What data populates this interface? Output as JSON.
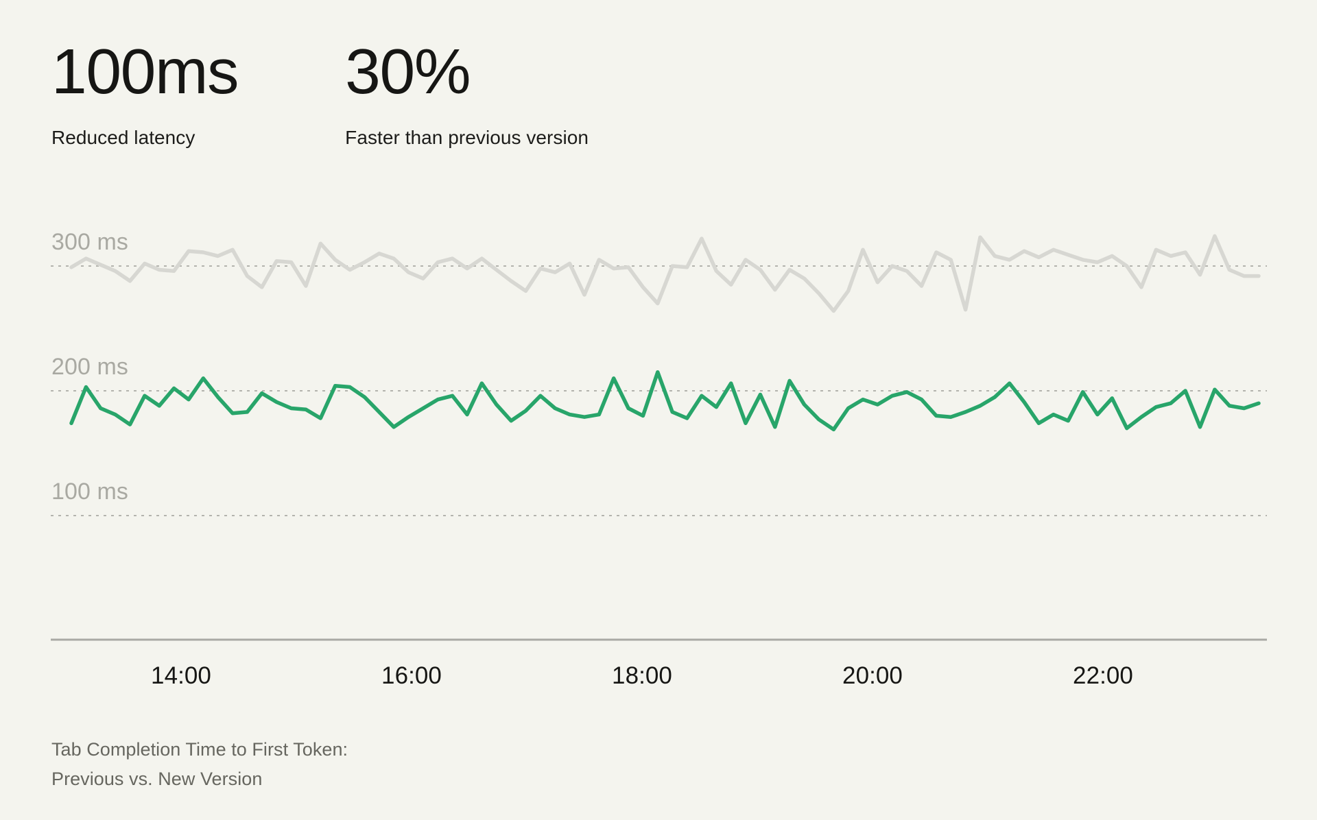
{
  "page": {
    "background_color": "#f4f4ee"
  },
  "stats": [
    {
      "value": "100ms",
      "label": "Reduced latency"
    },
    {
      "value": "30%",
      "label": "Faster than previous version"
    }
  ],
  "caption": {
    "line1": "Tab Completion Time to First Token:",
    "line2": "Previous vs. New Version"
  },
  "chart_data": {
    "type": "line",
    "title": "Tab Completion Time to First Token: Previous vs. New Version",
    "unit": "ms",
    "grid": "dotted-horizontal",
    "legend_position": "none",
    "x_range_hours": [
      13.05,
      23.35
    ],
    "x_ticks": [
      {
        "label": "14:00",
        "hour": 14
      },
      {
        "label": "16:00",
        "hour": 16
      },
      {
        "label": "18:00",
        "hour": 18
      },
      {
        "label": "20:00",
        "hour": 20
      },
      {
        "label": "22:00",
        "hour": 22
      }
    ],
    "y_ticks": [
      {
        "label": "300 ms",
        "value": 300
      },
      {
        "label": "200 ms",
        "value": 200
      },
      {
        "label": "100 ms",
        "value": 100
      }
    ],
    "ylim": [
      60,
      350
    ],
    "grid_color": "#b3b3ad",
    "axis_color": "#a9a9a4",
    "series": [
      {
        "name": "Previous version",
        "color": "#d7d7d2",
        "values": [
          299,
          306,
          301,
          296,
          288,
          302,
          297,
          296,
          312,
          311,
          308,
          313,
          292,
          283,
          304,
          303,
          284,
          318,
          305,
          297,
          303,
          310,
          306,
          295,
          290,
          303,
          306,
          298,
          306,
          297,
          288,
          280,
          298,
          295,
          302,
          277,
          305,
          298,
          299,
          283,
          270,
          300,
          299,
          322,
          296,
          285,
          305,
          297,
          281,
          297,
          290,
          278,
          264,
          280,
          313,
          287,
          300,
          296,
          284,
          311,
          305,
          265,
          323,
          308,
          305,
          312,
          307,
          313,
          309,
          305,
          303,
          308,
          300,
          283,
          313,
          308,
          311,
          293,
          324,
          297,
          292,
          292
        ]
      },
      {
        "name": "New version",
        "color": "#28a56a",
        "values": [
          174,
          203,
          186,
          181,
          173,
          196,
          188,
          202,
          193,
          210,
          195,
          182,
          183,
          198,
          191,
          186,
          185,
          178,
          204,
          203,
          195,
          183,
          171,
          179,
          186,
          193,
          196,
          181,
          206,
          189,
          176,
          184,
          196,
          186,
          181,
          179,
          181,
          210,
          186,
          180,
          215,
          183,
          178,
          196,
          187,
          206,
          174,
          197,
          171,
          208,
          189,
          177,
          169,
          186,
          193,
          189,
          196,
          199,
          193,
          180,
          179,
          183,
          188,
          195,
          206,
          191,
          174,
          181,
          176,
          199,
          181,
          194,
          170,
          179,
          187,
          190,
          200,
          171,
          201,
          188,
          186,
          190
        ]
      }
    ]
  }
}
